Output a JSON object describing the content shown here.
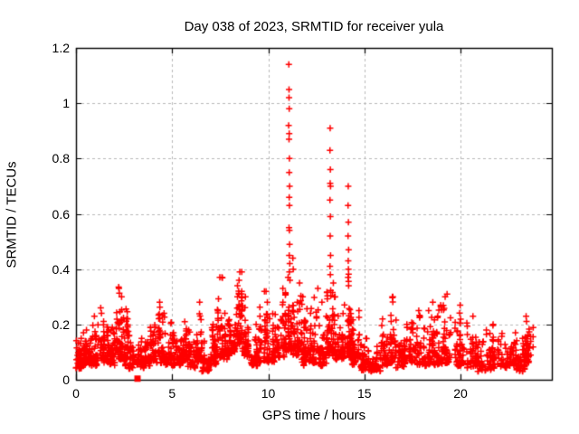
{
  "chart_data": {
    "type": "scatter",
    "title": "Day 038 of 2023, SRMTID for receiver yula",
    "xlabel": "GPS time / hours",
    "ylabel": "SRMTID / TECUs",
    "xlim": [
      0,
      24.75
    ],
    "ylim": [
      0,
      1.2
    ],
    "xticks": [
      0,
      5,
      10,
      15,
      20
    ],
    "xtick_labels": [
      "0",
      "5",
      "10",
      "15",
      "20"
    ],
    "yticks": [
      0,
      0.2,
      0.4,
      0.6,
      0.8,
      1,
      1.2
    ],
    "ytick_labels": [
      "0",
      "0.2",
      "0.4",
      "0.6",
      "0.8",
      "1",
      "1.2"
    ],
    "grid": true,
    "legend": "none",
    "marker": "plus",
    "marker_size": 7,
    "colors": {
      "marker": "#ff0000",
      "grid": "#b9b9b9",
      "border": "#000000",
      "background": "#ffffff",
      "text": "#000000"
    },
    "seed": 38,
    "spike_points": [
      [
        11.07,
        1.14
      ],
      [
        11.08,
        1.05
      ],
      [
        11.08,
        1.02
      ],
      [
        11.09,
        0.98
      ],
      [
        11.06,
        0.92
      ],
      [
        11.09,
        0.89
      ],
      [
        11.08,
        0.87
      ],
      [
        11.1,
        0.8
      ],
      [
        11.09,
        0.75
      ],
      [
        11.11,
        0.7
      ],
      [
        11.09,
        0.66
      ],
      [
        11.1,
        0.63
      ],
      [
        11.08,
        0.55
      ],
      [
        11.1,
        0.54
      ],
      [
        11.11,
        0.49
      ],
      [
        11.09,
        0.45
      ],
      [
        11.12,
        0.42
      ],
      [
        11.1,
        0.39
      ],
      [
        11.13,
        0.36
      ],
      [
        11.28,
        0.44
      ],
      [
        11.3,
        0.4
      ],
      [
        13.22,
        0.91
      ],
      [
        13.21,
        0.83
      ],
      [
        13.23,
        0.76
      ],
      [
        13.22,
        0.71
      ],
      [
        13.24,
        0.7
      ],
      [
        13.21,
        0.65
      ],
      [
        13.23,
        0.59
      ],
      [
        13.22,
        0.52
      ],
      [
        13.24,
        0.45
      ],
      [
        13.21,
        0.41
      ],
      [
        13.23,
        0.38
      ],
      [
        14.16,
        0.7
      ],
      [
        14.15,
        0.63
      ],
      [
        14.17,
        0.57
      ],
      [
        14.15,
        0.52
      ],
      [
        14.18,
        0.47
      ],
      [
        14.16,
        0.43
      ],
      [
        14.17,
        0.4
      ],
      [
        14.15,
        0.37
      ],
      [
        14.18,
        0.34
      ],
      [
        2.22,
        0.335
      ],
      [
        7.48,
        0.37
      ],
      [
        8.52,
        0.39
      ],
      [
        8.48,
        0.36
      ],
      [
        9.8,
        0.32
      ],
      [
        16.48,
        0.3
      ],
      [
        19.3,
        0.31
      ],
      [
        8.4,
        0.34
      ]
    ],
    "outlier_squares": [
      [
        3.2,
        0.004
      ]
    ],
    "noise_bands": [
      [
        0.0,
        0.35,
        45,
        0.04,
        0.15
      ],
      [
        0.35,
        0.8,
        55,
        0.05,
        0.18
      ],
      [
        0.8,
        1.3,
        60,
        0.05,
        0.26
      ],
      [
        1.3,
        1.75,
        55,
        0.06,
        0.24
      ],
      [
        1.75,
        2.1,
        45,
        0.05,
        0.19
      ],
      [
        2.1,
        2.35,
        40,
        0.07,
        0.33
      ],
      [
        2.35,
        2.75,
        50,
        0.05,
        0.3
      ],
      [
        2.75,
        3.1,
        40,
        0.04,
        0.16
      ],
      [
        3.1,
        3.6,
        45,
        0.04,
        0.15
      ],
      [
        3.6,
        4.05,
        50,
        0.05,
        0.19
      ],
      [
        4.05,
        4.5,
        50,
        0.06,
        0.28
      ],
      [
        4.5,
        5.0,
        50,
        0.05,
        0.24
      ],
      [
        5.0,
        5.45,
        50,
        0.05,
        0.17
      ],
      [
        5.45,
        5.8,
        45,
        0.06,
        0.21
      ],
      [
        5.8,
        6.2,
        45,
        0.04,
        0.18
      ],
      [
        6.2,
        6.55,
        45,
        0.06,
        0.28
      ],
      [
        6.55,
        7.0,
        45,
        0.03,
        0.14
      ],
      [
        7.0,
        7.3,
        40,
        0.05,
        0.2
      ],
      [
        7.3,
        7.65,
        45,
        0.08,
        0.37
      ],
      [
        7.65,
        8.1,
        50,
        0.06,
        0.24
      ],
      [
        8.1,
        8.4,
        40,
        0.1,
        0.3
      ],
      [
        8.4,
        8.65,
        40,
        0.12,
        0.39
      ],
      [
        8.65,
        9.1,
        50,
        0.08,
        0.3
      ],
      [
        9.1,
        9.55,
        50,
        0.05,
        0.2
      ],
      [
        9.55,
        9.95,
        45,
        0.06,
        0.32
      ],
      [
        9.95,
        10.4,
        50,
        0.06,
        0.28
      ],
      [
        10.4,
        10.85,
        50,
        0.08,
        0.33
      ],
      [
        10.85,
        11.25,
        55,
        0.1,
        0.37
      ],
      [
        11.25,
        11.7,
        55,
        0.08,
        0.35
      ],
      [
        11.7,
        12.2,
        60,
        0.05,
        0.3
      ],
      [
        12.2,
        12.65,
        55,
        0.06,
        0.33
      ],
      [
        12.65,
        13.05,
        50,
        0.05,
        0.28
      ],
      [
        13.05,
        13.45,
        55,
        0.08,
        0.35
      ],
      [
        13.45,
        13.95,
        55,
        0.07,
        0.3
      ],
      [
        13.95,
        14.35,
        55,
        0.08,
        0.4
      ],
      [
        14.35,
        14.8,
        50,
        0.05,
        0.25
      ],
      [
        14.8,
        15.3,
        50,
        0.03,
        0.15
      ],
      [
        15.3,
        15.85,
        50,
        0.03,
        0.12
      ],
      [
        15.85,
        16.3,
        45,
        0.05,
        0.22
      ],
      [
        16.3,
        16.65,
        40,
        0.06,
        0.3
      ],
      [
        16.65,
        17.3,
        55,
        0.04,
        0.2
      ],
      [
        17.3,
        17.95,
        55,
        0.05,
        0.25
      ],
      [
        17.95,
        18.6,
        55,
        0.05,
        0.28
      ],
      [
        18.6,
        19.1,
        50,
        0.05,
        0.27
      ],
      [
        19.1,
        19.55,
        45,
        0.06,
        0.3
      ],
      [
        19.55,
        20.15,
        55,
        0.05,
        0.27
      ],
      [
        20.15,
        20.9,
        55,
        0.04,
        0.23
      ],
      [
        20.9,
        21.6,
        55,
        0.03,
        0.18
      ],
      [
        21.6,
        22.3,
        55,
        0.04,
        0.2
      ],
      [
        22.3,
        22.9,
        50,
        0.04,
        0.17
      ],
      [
        22.9,
        23.35,
        45,
        0.03,
        0.15
      ],
      [
        23.35,
        23.78,
        45,
        0.06,
        0.23
      ]
    ]
  }
}
